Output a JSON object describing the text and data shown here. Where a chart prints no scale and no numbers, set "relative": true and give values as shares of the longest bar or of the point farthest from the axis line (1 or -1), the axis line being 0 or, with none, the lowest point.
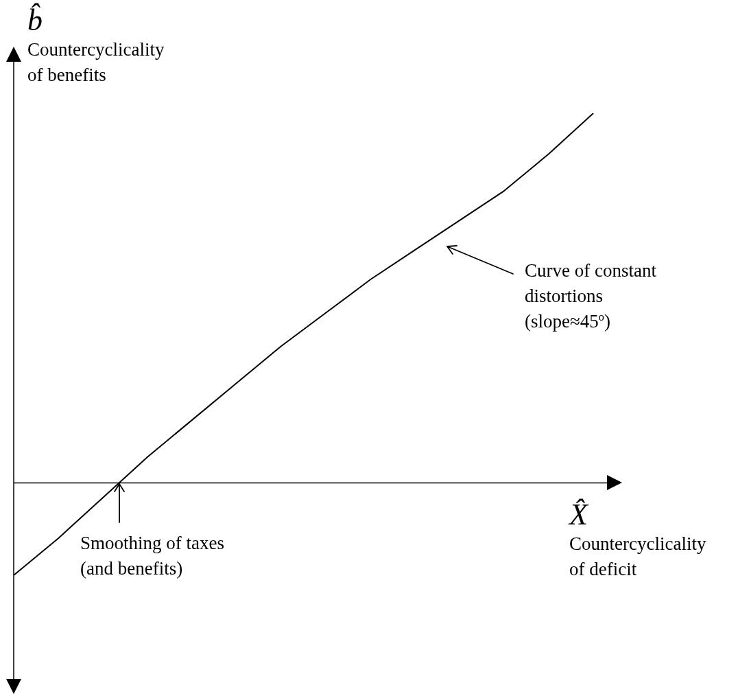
{
  "chart_data": {
    "type": "line",
    "relative": true,
    "xlabel": "X̂\nCountercyclicality\nof deficit",
    "ylabel": "b̂\nCountercyclicality\nof benefits",
    "categories": [
      null,
      null,
      null,
      null,
      null,
      null,
      null,
      null,
      null,
      null,
      null,
      null,
      null,
      null
    ],
    "series": [
      {
        "color": "#000000",
        "values": [
          -0.25,
          -0.15,
          -0.04,
          0.07,
          0.17,
          0.27,
          0.37,
          0.46,
          0.55,
          0.63,
          0.71,
          0.79,
          0.89,
          1
        ]
      }
    ],
    "marker": "none",
    "line_style": "solid",
    "legend": false,
    "annotations": [
      "Curve of constant\ndistortions\n(slope≈45$^{o}$)",
      "Smoothing of taxes\n(and benefits)"
    ]
  }
}
